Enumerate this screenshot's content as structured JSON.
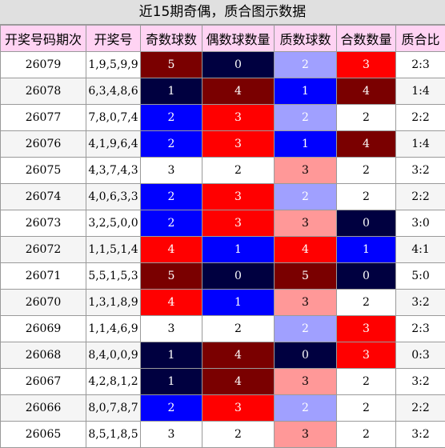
{
  "title": "近15期奇偶，质合图示数据",
  "headers": [
    "开奖号码期次",
    "开奖号",
    "奇数球数",
    "偶数球数量",
    "质数球数",
    "合数数量",
    "质合比"
  ],
  "colors": {
    "dark": "#7a0000",
    "navy": "#000040",
    "blue": "#0000ff",
    "red": "#ff0000",
    "lavender": "#a0a0ff",
    "pink": "#ff9898",
    "white": "#ffffff"
  },
  "rows": [
    {
      "period": "26079",
      "numbers": "1,9,5,9,9",
      "odd": "5",
      "even": "0",
      "prime": "2",
      "composite": "3",
      "ratio": "2:3"
    },
    {
      "period": "26078",
      "numbers": "6,3,4,8,6",
      "odd": "1",
      "even": "4",
      "prime": "1",
      "composite": "4",
      "ratio": "1:4"
    },
    {
      "period": "26077",
      "numbers": "7,8,0,7,4",
      "odd": "2",
      "even": "3",
      "prime": "2",
      "composite": "2",
      "ratio": "2:2"
    },
    {
      "period": "26076",
      "numbers": "4,1,9,6,4",
      "odd": "2",
      "even": "3",
      "prime": "1",
      "composite": "4",
      "ratio": "1:4"
    },
    {
      "period": "26075",
      "numbers": "4,3,7,4,3",
      "odd": "3",
      "even": "2",
      "prime": "3",
      "composite": "2",
      "ratio": "3:2"
    },
    {
      "period": "26074",
      "numbers": "4,0,6,3,3",
      "odd": "2",
      "even": "3",
      "prime": "2",
      "composite": "2",
      "ratio": "2:2"
    },
    {
      "period": "26073",
      "numbers": "3,2,5,0,0",
      "odd": "2",
      "even": "3",
      "prime": "3",
      "composite": "0",
      "ratio": "3:0"
    },
    {
      "period": "26072",
      "numbers": "1,1,5,1,4",
      "odd": "4",
      "even": "1",
      "prime": "4",
      "composite": "1",
      "ratio": "4:1"
    },
    {
      "period": "26071",
      "numbers": "5,5,1,5,3",
      "odd": "5",
      "even": "0",
      "prime": "5",
      "composite": "0",
      "ratio": "5:0"
    },
    {
      "period": "26070",
      "numbers": "1,3,1,8,9",
      "odd": "4",
      "even": "1",
      "prime": "3",
      "composite": "2",
      "ratio": "3:2"
    },
    {
      "period": "26069",
      "numbers": "1,1,4,6,9",
      "odd": "3",
      "even": "2",
      "prime": "2",
      "composite": "3",
      "ratio": "2:3"
    },
    {
      "period": "26068",
      "numbers": "8,4,0,0,9",
      "odd": "1",
      "even": "4",
      "prime": "0",
      "composite": "3",
      "ratio": "0:3"
    },
    {
      "period": "26067",
      "numbers": "4,2,8,1,2",
      "odd": "1",
      "even": "4",
      "prime": "3",
      "composite": "2",
      "ratio": "3:2"
    },
    {
      "period": "26066",
      "numbers": "8,0,7,8,7",
      "odd": "2",
      "even": "3",
      "prime": "2",
      "composite": "2",
      "ratio": "2:2"
    },
    {
      "period": "26065",
      "numbers": "8,5,1,8,5",
      "odd": "3",
      "even": "2",
      "prime": "3",
      "composite": "2",
      "ratio": "3:2"
    }
  ]
}
